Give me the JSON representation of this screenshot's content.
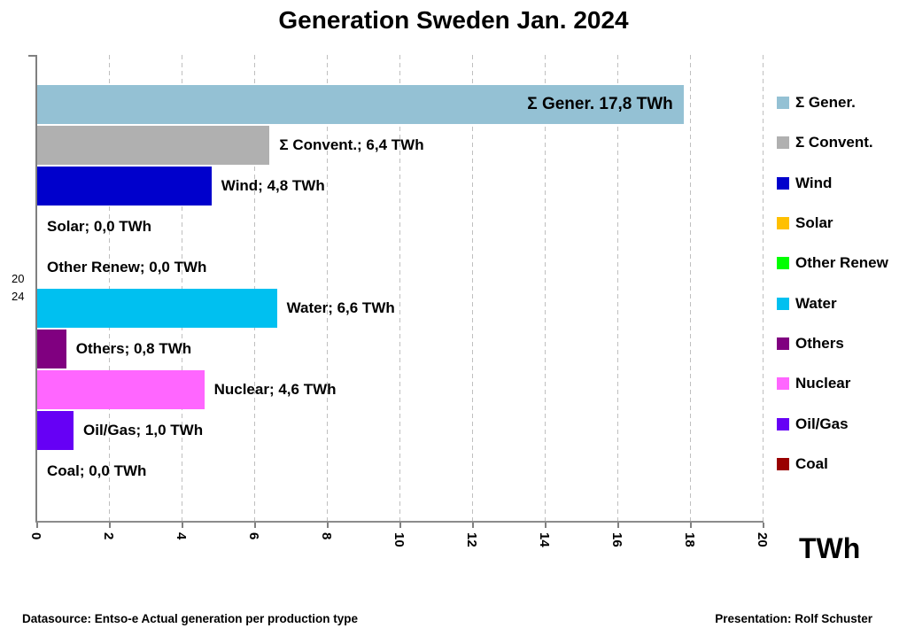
{
  "title": "Generation Sweden Jan. 2024",
  "chart_data": {
    "type": "bar",
    "orientation": "horizontal",
    "title": "Generation Sweden Jan. 2024",
    "categories": [
      "Σ Gener.",
      "Σ Convent.",
      "Wind",
      "Solar",
      "Other Renew",
      "Water",
      "Others",
      "Nuclear",
      "Oil/Gas",
      "Coal"
    ],
    "values": [
      17.8,
      6.4,
      4.8,
      0.0,
      0.0,
      6.6,
      0.8,
      4.6,
      1.0,
      0.0
    ],
    "bar_labels": [
      "Σ Gener. 17,8 TWh",
      "Σ Convent.; 6,4 TWh",
      "Wind; 4,8 TWh",
      "Solar; 0,0 TWh",
      "Other Renew; 0,0 TWh",
      "Water; 6,6 TWh",
      "Others; 0,8 TWh",
      "Nuclear; 4,6 TWh",
      "Oil/Gas; 1,0 TWh",
      "Coal; 0,0 TWh"
    ],
    "colors": [
      "#94C1D4",
      "#B0B0B0",
      "#0000CC",
      "#FFC000",
      "#00FF00",
      "#00C0F0",
      "#800080",
      "#FF66FF",
      "#6600F5",
      "#990000"
    ],
    "inside_label_indices": [
      0
    ],
    "xlim": [
      0,
      20
    ],
    "x_tick_step": 2,
    "x_ticks": [
      0,
      2,
      4,
      6,
      8,
      10,
      12,
      14,
      16,
      18,
      20
    ],
    "xlabel": "TWh",
    "ylabel": "2024",
    "grid": "vertical-dashed",
    "legend_position": "right"
  },
  "axis": {
    "y_label_lines": [
      "20",
      "24"
    ],
    "x_unit": "TWh"
  },
  "footer": {
    "left": "Datasource: Entso-e  Actual generation per production type",
    "right": "Presentation: Rolf Schuster"
  }
}
